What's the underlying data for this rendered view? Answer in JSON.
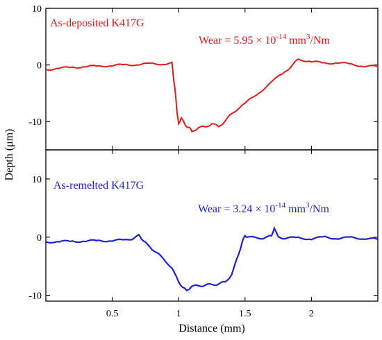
{
  "chart_data": [
    {
      "type": "line",
      "panel": "top",
      "title": "",
      "xlabel": "Distance (mm)",
      "ylabel": "Depth (μm)",
      "xlim": [
        0,
        2.5
      ],
      "ylim": [
        -15,
        10
      ],
      "yticks": [
        10,
        0,
        -10
      ],
      "yticklabels": [
        "10",
        "0",
        "-10"
      ],
      "color": "#e31a1c",
      "annotations": {
        "sample": "As-deposited K417G",
        "wear_prefix": "Wear = 5.95 × 10",
        "wear_exp": "-14",
        "wear_unit": " mm",
        "wear_unit_exp": "3",
        "wear_suffix": "/Nm"
      },
      "series": [
        {
          "x": [
            0.0,
            0.1,
            0.2,
            0.3,
            0.4,
            0.5,
            0.6,
            0.7,
            0.8,
            0.9,
            0.95,
            0.96,
            0.97,
            0.98,
            0.99,
            1.0,
            1.02,
            1.05,
            1.08,
            1.1,
            1.15,
            1.2,
            1.25,
            1.3,
            1.35,
            1.4,
            1.5,
            1.6,
            1.7,
            1.8,
            1.85,
            1.9,
            2.0,
            2.1,
            2.2,
            2.3,
            2.4,
            2.5
          ],
          "y": [
            -0.8,
            -0.6,
            -0.4,
            -0.3,
            -0.2,
            -0.1,
            0.0,
            0.1,
            0.2,
            0.2,
            0.3,
            -2.0,
            -4.0,
            -6.0,
            -9.0,
            -10.2,
            -9.5,
            -10.5,
            -11.2,
            -11.6,
            -11.2,
            -10.8,
            -10.5,
            -10.8,
            -10.0,
            -8.5,
            -6.8,
            -5.0,
            -3.0,
            -1.2,
            -0.2,
            1.0,
            0.6,
            0.3,
            0.4,
            0.1,
            -0.2,
            -0.3
          ]
        }
      ]
    },
    {
      "type": "line",
      "panel": "bottom",
      "title": "",
      "xlabel": "Distance (mm)",
      "ylabel": "Depth (μm)",
      "xlim": [
        0,
        2.5
      ],
      "ylim": [
        -11,
        15
      ],
      "xticks": [
        0.5,
        1,
        1.5,
        2
      ],
      "xticklabels": [
        "0.5",
        "1",
        "1.5",
        "2"
      ],
      "yticks": [
        10,
        0,
        -10
      ],
      "yticklabels": [
        "10",
        "0",
        "-10"
      ],
      "color": "#1f1fd6",
      "annotations": {
        "sample": "As-remelted K417G",
        "wear_prefix": "Wear = 3.24 × 10",
        "wear_exp": "-14",
        "wear_unit": " mm",
        "wear_unit_exp": "3",
        "wear_suffix": "/Nm"
      },
      "series": [
        {
          "x": [
            0.0,
            0.1,
            0.2,
            0.3,
            0.4,
            0.5,
            0.6,
            0.65,
            0.7,
            0.72,
            0.75,
            0.8,
            0.85,
            0.9,
            0.95,
            1.0,
            1.03,
            1.06,
            1.1,
            1.15,
            1.2,
            1.25,
            1.3,
            1.35,
            1.4,
            1.45,
            1.48,
            1.5,
            1.52,
            1.6,
            1.65,
            1.7,
            1.72,
            1.75,
            1.8,
            1.9,
            2.0,
            2.1,
            2.2,
            2.3,
            2.4,
            2.5
          ],
          "y": [
            -0.8,
            -0.8,
            -0.7,
            -0.7,
            -0.6,
            -0.6,
            -0.5,
            -0.3,
            0.3,
            -0.2,
            -1.0,
            -2.0,
            -3.0,
            -4.0,
            -5.5,
            -7.5,
            -8.8,
            -9.0,
            -8.6,
            -8.2,
            -8.4,
            -8.0,
            -8.2,
            -7.6,
            -6.5,
            -3.0,
            -0.8,
            0.3,
            0.0,
            -0.2,
            -0.1,
            0.2,
            1.6,
            0.0,
            -0.2,
            -0.1,
            -0.3,
            0.0,
            -0.2,
            -0.1,
            -0.2,
            -0.4
          ]
        }
      ]
    }
  ]
}
